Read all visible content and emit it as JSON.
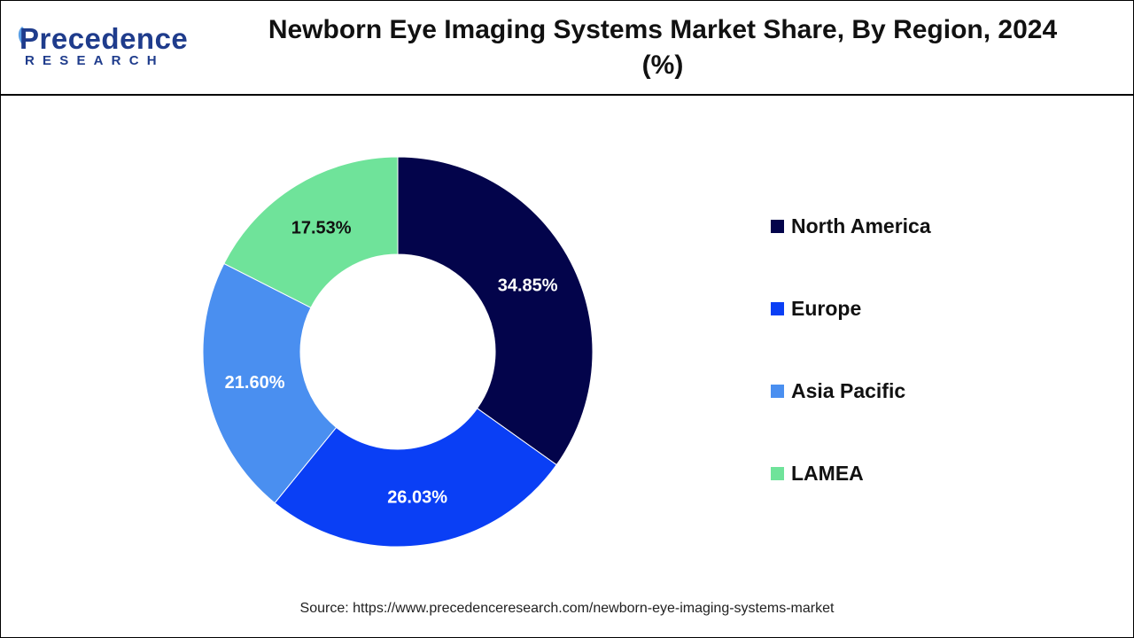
{
  "brand": {
    "name": "Precedence",
    "sub": "RESEARCH",
    "color": "#1f3c8c",
    "accent": "#5aa0e6"
  },
  "chart_data": {
    "type": "pie",
    "style": "donut",
    "title": "Newborn Eye Imaging Systems Market Share, By Region, 2024 (%)",
    "categories": [
      "North America",
      "Europe",
      "Asia Pacific",
      "LAMEA"
    ],
    "values": [
      34.85,
      26.03,
      21.6,
      17.53
    ],
    "labels": [
      "34.85%",
      "26.03%",
      "21.60%",
      "17.53%"
    ],
    "colors": [
      "#03044b",
      "#0a3ff5",
      "#4a8ff0",
      "#6fe39a"
    ],
    "label_colors": [
      "#ffffff",
      "#ffffff",
      "#ffffff",
      "#111111"
    ],
    "legend_position": "right"
  },
  "source": "Source: https://www.precedenceresearch.com/newborn-eye-imaging-systems-market"
}
